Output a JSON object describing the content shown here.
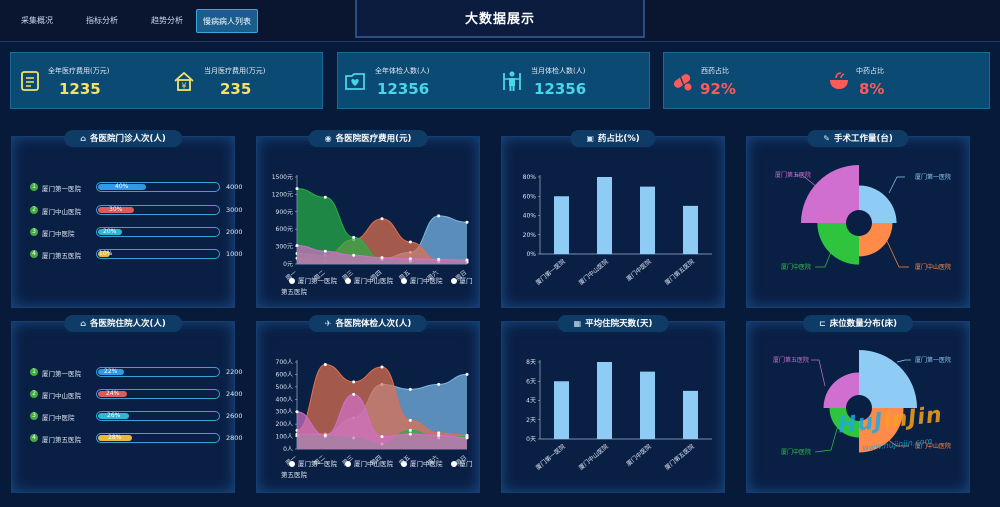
{
  "nav": {
    "tabs": [
      {
        "label": "采集概况"
      },
      {
        "label": "指标分析"
      },
      {
        "label": "趋势分析"
      },
      {
        "label": "慢病病人列表"
      }
    ],
    "active_index": 3
  },
  "page_title": "大数据展示",
  "kpis": [
    {
      "label": "全年医疗费用(万元)",
      "value": "1235",
      "icon": "document-icon",
      "color": "#f5e26a"
    },
    {
      "label": "当月医疗费用(万元)",
      "value": "235",
      "icon": "yen-house-icon",
      "color": "#f5e26a"
    },
    {
      "label": "全年体检人数(人)",
      "value": "12356",
      "icon": "heart-folder-icon",
      "color": "#49d6e8"
    },
    {
      "label": "当月体检人数(人)",
      "value": "12356",
      "icon": "person-icon",
      "color": "#49d6e8"
    },
    {
      "label": "西药占比",
      "value": "92%",
      "icon": "pill-icon",
      "color": "#ff5a5a"
    },
    {
      "label": "中药占比",
      "value": "8%",
      "icon": "herbal-bowl-icon",
      "color": "#ff5a5a"
    }
  ],
  "panels": {
    "outpatient": {
      "title": "各医院门诊人次(人)",
      "icon": "hospital-icon",
      "rows": [
        {
          "rank": "1",
          "name": "厦门第一医院",
          "pct": "40%",
          "fraction": 0.4,
          "value": "4000",
          "color": "#2f9be6"
        },
        {
          "rank": "2",
          "name": "厦门中山医院",
          "pct": "30%",
          "fraction": 0.3,
          "value": "3000",
          "color": "#e05a5a"
        },
        {
          "rank": "3",
          "name": "厦门中医院",
          "pct": "20%",
          "fraction": 0.2,
          "value": "2000",
          "color": "#2fb8d6"
        },
        {
          "rank": "4",
          "name": "厦门第五医院",
          "pct": "10%",
          "fraction": 0.1,
          "value": "1000",
          "color": "#e8b83c"
        }
      ]
    },
    "inpatient": {
      "title": "各医院住院人次(人)",
      "icon": "bed-person-icon",
      "rows": [
        {
          "rank": "1",
          "name": "厦门第一医院",
          "pct": "22%",
          "fraction": 0.22,
          "value": "2200",
          "color": "#2f9be6"
        },
        {
          "rank": "2",
          "name": "厦门中山医院",
          "pct": "24%",
          "fraction": 0.24,
          "value": "2400",
          "color": "#e05a5a"
        },
        {
          "rank": "3",
          "name": "厦门中医院",
          "pct": "26%",
          "fraction": 0.26,
          "value": "2600",
          "color": "#2fb8d6"
        },
        {
          "rank": "4",
          "name": "厦门第五医院",
          "pct": "28%",
          "fraction": 0.28,
          "value": "2800",
          "color": "#e8b83c"
        }
      ]
    },
    "cost": {
      "title": "各医院医疗费用(元)",
      "icon": "coin-icon"
    },
    "drug_ratio": {
      "title": "药占比(%)",
      "icon": "medicine-bottle-icon"
    },
    "surgery": {
      "title": "手术工作量(台)",
      "icon": "scalpel-icon"
    },
    "checkup": {
      "title": "各医院体检人次(人)",
      "icon": "runner-icon"
    },
    "avg_stay": {
      "title": "平均住院天数(天)",
      "icon": "calendar-icon"
    },
    "beds": {
      "title": "床位数量分布(床)",
      "icon": "bed-icon"
    }
  },
  "watermark": {
    "text_a": "HuJ",
    "text_b": "inJin",
    "url": "www.hujinjin.com"
  },
  "chart_data": [
    {
      "id": "cost",
      "type": "area",
      "title": "各医院医疗费用(元)",
      "categories": [
        "周一",
        "周二",
        "周三",
        "周四",
        "周五",
        "周六",
        "周日"
      ],
      "ylim": [
        0,
        1500
      ],
      "yticks": [
        "0元",
        "300元",
        "600元",
        "900元",
        "1200元",
        "1500元"
      ],
      "series": [
        {
          "name": "厦门第一医院",
          "values": [
            100,
            60,
            40,
            90,
            200,
            830,
            720
          ],
          "color": "#7ab8e8"
        },
        {
          "name": "厦门中山医院",
          "values": [
            180,
            150,
            420,
            780,
            380,
            60,
            40
          ],
          "color": "#e07050"
        },
        {
          "name": "厦门中医院",
          "values": [
            1300,
            1150,
            460,
            80,
            50,
            40,
            30
          ],
          "color": "#27b045"
        },
        {
          "name": "厦门第五医院",
          "values": [
            320,
            220,
            150,
            110,
            90,
            80,
            70
          ],
          "color": "#d070c8"
        }
      ],
      "legend": "bottom"
    },
    {
      "id": "drug_ratio",
      "type": "bar",
      "title": "药占比(%)",
      "categories": [
        "厦门第一医院",
        "厦门中山医院",
        "厦门中医院",
        "厦门第五医院"
      ],
      "values": [
        60,
        80,
        70,
        50
      ],
      "ylim": [
        0,
        80
      ],
      "yticks": [
        "0%",
        "20%",
        "40%",
        "60%",
        "80%"
      ],
      "color": "#8ecbf5"
    },
    {
      "id": "surgery",
      "type": "pie",
      "title": "手术工作量(台)",
      "rose": true,
      "slices": [
        {
          "name": "厦门第一医院",
          "value": 30,
          "color": "#8ecbf5"
        },
        {
          "name": "厦门中山医院",
          "value": 25,
          "color": "#ff8a4a"
        },
        {
          "name": "厦门中医院",
          "value": 35,
          "color": "#2ec43e"
        },
        {
          "name": "厦门第五医院",
          "value": 55,
          "color": "#d16fd0"
        }
      ]
    },
    {
      "id": "checkup",
      "type": "area",
      "title": "各医院体检人次(人)",
      "categories": [
        "周一",
        "周二",
        "周三",
        "周四",
        "周五",
        "周六",
        "周日"
      ],
      "ylim": [
        0,
        700
      ],
      "yticks": [
        "0人",
        "100人",
        "200人",
        "300人",
        "400人",
        "500人",
        "600人",
        "700人"
      ],
      "series": [
        {
          "name": "厦门第一医院",
          "values": [
            120,
            120,
            250,
            520,
            480,
            520,
            600
          ],
          "color": "#7ab8e8"
        },
        {
          "name": "厦门中山医院",
          "values": [
            150,
            680,
            540,
            660,
            230,
            130,
            110
          ],
          "color": "#e07050"
        },
        {
          "name": "厦门中医院",
          "values": [
            110,
            100,
            90,
            40,
            150,
            90,
            100
          ],
          "color": "#27b045"
        },
        {
          "name": "厦门第五医院",
          "values": [
            300,
            110,
            440,
            100,
            120,
            110,
            90
          ],
          "color": "#d070c8"
        }
      ],
      "legend": "bottom"
    },
    {
      "id": "avg_stay",
      "type": "bar",
      "title": "平均住院天数(天)",
      "categories": [
        "厦门第一医院",
        "厦门中山医院",
        "厦门中医院",
        "厦门第五医院"
      ],
      "values": [
        6,
        8,
        7,
        5
      ],
      "ylim": [
        0,
        8
      ],
      "yticks": [
        "0天",
        "2天",
        "4天",
        "6天",
        "8天"
      ],
      "color": "#8ecbf5"
    },
    {
      "id": "beds",
      "type": "pie",
      "title": "床位数量分布(床)",
      "rose": true,
      "slices": [
        {
          "name": "厦门第一医院",
          "value": 60,
          "color": "#8ecbf5"
        },
        {
          "name": "厦门中山医院",
          "value": 42,
          "color": "#ff8a4a"
        },
        {
          "name": "厦门中医院",
          "value": 22,
          "color": "#2ec43e"
        },
        {
          "name": "厦门第五医院",
          "value": 30,
          "color": "#d16fd0"
        }
      ]
    }
  ]
}
